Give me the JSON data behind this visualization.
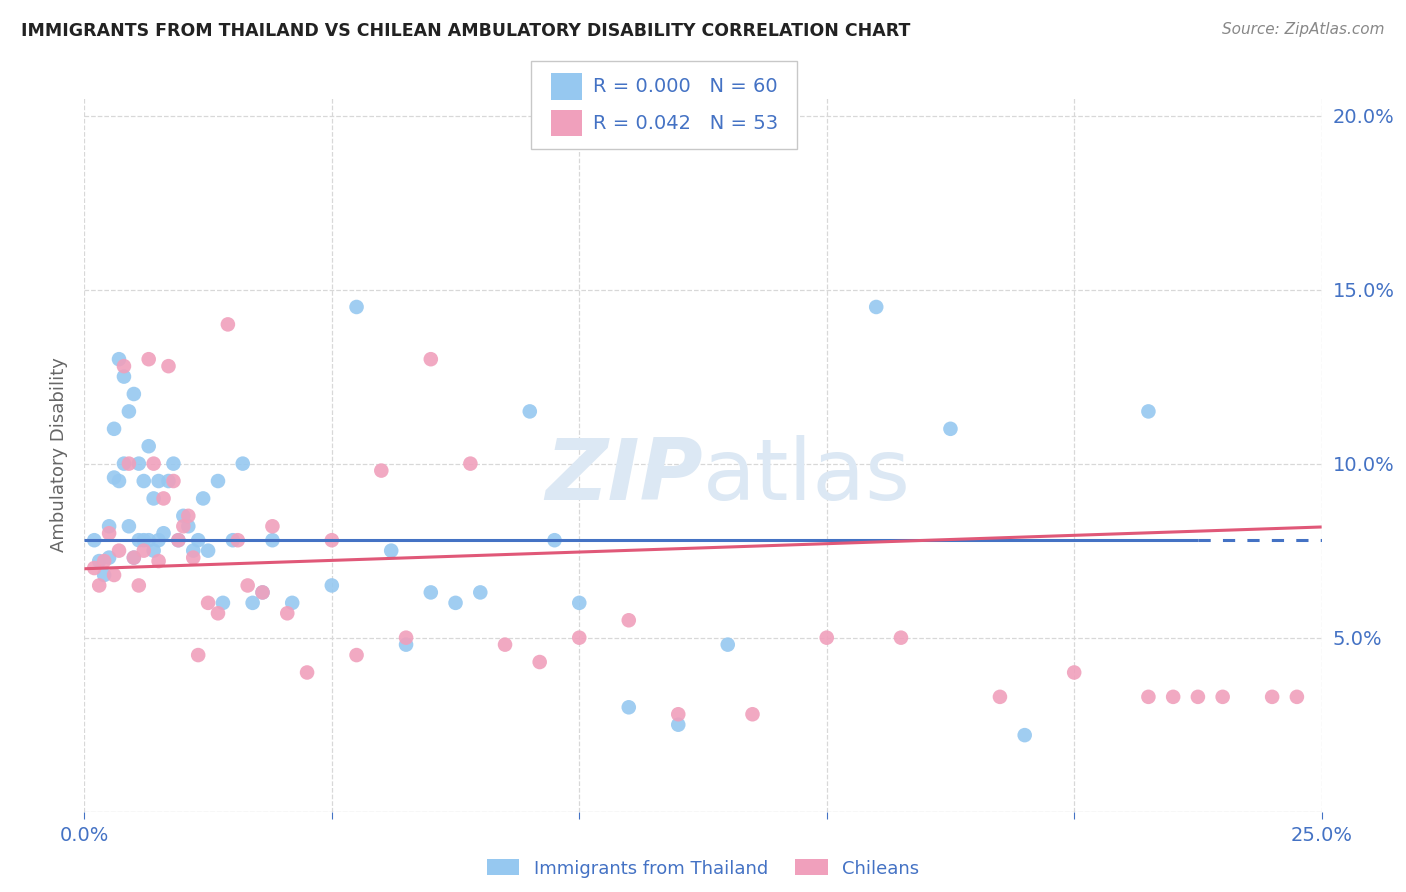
{
  "title": "IMMIGRANTS FROM THAILAND VS CHILEAN AMBULATORY DISABILITY CORRELATION CHART",
  "source": "Source: ZipAtlas.com",
  "ylabel": "Ambulatory Disability",
  "R1": "0.000",
  "N1": "60",
  "R2": "0.042",
  "N2": "53",
  "color_blue": "#96C8F0",
  "color_pink": "#F0A0BC",
  "color_blue_text": "#4472C4",
  "color_pink_text": "#E05878",
  "color_grid": "#D8D8D8",
  "watermark_color": "#DCE8F4",
  "legend1_label": "Immigrants from Thailand",
  "legend2_label": "Chileans",
  "xlim": [
    0.0,
    0.25
  ],
  "ylim": [
    0.0,
    0.205
  ],
  "blue_line_y": 0.078,
  "pink_line_start_y": 0.0698,
  "pink_line_end_y": 0.0818,
  "blue_scatter_x": [
    0.002,
    0.003,
    0.004,
    0.005,
    0.005,
    0.006,
    0.006,
    0.007,
    0.007,
    0.008,
    0.008,
    0.009,
    0.009,
    0.01,
    0.01,
    0.011,
    0.011,
    0.012,
    0.012,
    0.013,
    0.013,
    0.014,
    0.014,
    0.015,
    0.015,
    0.016,
    0.017,
    0.018,
    0.019,
    0.02,
    0.021,
    0.022,
    0.023,
    0.024,
    0.025,
    0.027,
    0.028,
    0.03,
    0.032,
    0.034,
    0.036,
    0.038,
    0.042,
    0.05,
    0.055,
    0.062,
    0.065,
    0.07,
    0.075,
    0.08,
    0.09,
    0.095,
    0.1,
    0.11,
    0.12,
    0.13,
    0.16,
    0.175,
    0.19,
    0.215
  ],
  "blue_scatter_y": [
    0.078,
    0.072,
    0.068,
    0.082,
    0.073,
    0.11,
    0.096,
    0.13,
    0.095,
    0.125,
    0.1,
    0.115,
    0.082,
    0.12,
    0.073,
    0.1,
    0.078,
    0.095,
    0.078,
    0.105,
    0.078,
    0.09,
    0.075,
    0.095,
    0.078,
    0.08,
    0.095,
    0.1,
    0.078,
    0.085,
    0.082,
    0.075,
    0.078,
    0.09,
    0.075,
    0.095,
    0.06,
    0.078,
    0.1,
    0.06,
    0.063,
    0.078,
    0.06,
    0.065,
    0.145,
    0.075,
    0.048,
    0.063,
    0.06,
    0.063,
    0.115,
    0.078,
    0.06,
    0.03,
    0.025,
    0.048,
    0.145,
    0.11,
    0.022,
    0.115
  ],
  "pink_scatter_x": [
    0.002,
    0.003,
    0.004,
    0.005,
    0.006,
    0.007,
    0.008,
    0.009,
    0.01,
    0.011,
    0.012,
    0.013,
    0.014,
    0.015,
    0.016,
    0.017,
    0.018,
    0.019,
    0.02,
    0.021,
    0.022,
    0.023,
    0.025,
    0.027,
    0.029,
    0.031,
    0.033,
    0.036,
    0.038,
    0.041,
    0.045,
    0.05,
    0.055,
    0.06,
    0.065,
    0.07,
    0.078,
    0.085,
    0.092,
    0.1,
    0.11,
    0.12,
    0.135,
    0.15,
    0.165,
    0.185,
    0.2,
    0.215,
    0.22,
    0.225,
    0.23,
    0.24,
    0.245
  ],
  "pink_scatter_y": [
    0.07,
    0.065,
    0.072,
    0.08,
    0.068,
    0.075,
    0.128,
    0.1,
    0.073,
    0.065,
    0.075,
    0.13,
    0.1,
    0.072,
    0.09,
    0.128,
    0.095,
    0.078,
    0.082,
    0.085,
    0.073,
    0.045,
    0.06,
    0.057,
    0.14,
    0.078,
    0.065,
    0.063,
    0.082,
    0.057,
    0.04,
    0.078,
    0.045,
    0.098,
    0.05,
    0.13,
    0.1,
    0.048,
    0.043,
    0.05,
    0.055,
    0.028,
    0.028,
    0.05,
    0.05,
    0.033,
    0.04,
    0.033,
    0.033,
    0.033,
    0.033,
    0.033,
    0.033
  ]
}
